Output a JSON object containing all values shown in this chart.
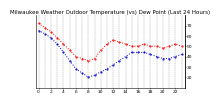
{
  "title": "Milwaukee Weather Outdoor Temperature (vs) Dew Point (Last 24 Hours)",
  "background_color": "#ffffff",
  "grid_color": "#888888",
  "temp_color": "#ff0000",
  "dew_color": "#0000cc",
  "temp_values": [
    72,
    68,
    64,
    58,
    52,
    46,
    40,
    38,
    36,
    38,
    46,
    52,
    56,
    54,
    52,
    50,
    50,
    52,
    50,
    50,
    48,
    50,
    52,
    50
  ],
  "dew_values": [
    65,
    62,
    58,
    52,
    44,
    36,
    28,
    24,
    20,
    22,
    25,
    28,
    32,
    36,
    40,
    44,
    44,
    44,
    42,
    40,
    38,
    38,
    40,
    42
  ],
  "ylim_min": 10,
  "ylim_max": 80,
  "yticks": [
    20,
    30,
    40,
    50,
    60,
    70
  ],
  "ytick_labels": [
    "20",
    "30",
    "40",
    "50",
    "60",
    "70"
  ],
  "n_points": 24,
  "title_fontsize": 4.0,
  "tick_fontsize": 3.2,
  "line_width": 0.7,
  "marker_size": 1.0,
  "xtick_step": 2
}
